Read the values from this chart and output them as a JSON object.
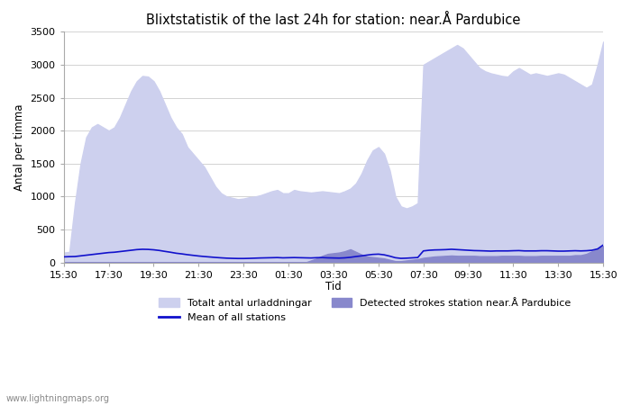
{
  "title": "Blixtstatistik of the last 24h for station: near.Å Pardubice",
  "xlabel": "Tid",
  "ylabel": "Antal per timma",
  "xlim_labels": [
    "15:30",
    "17:30",
    "19:30",
    "21:30",
    "23:30",
    "01:30",
    "03:30",
    "05:30",
    "07:30",
    "09:30",
    "11:30",
    "13:30",
    "15:30"
  ],
  "ylim": [
    0,
    3500
  ],
  "yticks": [
    0,
    500,
    1000,
    1500,
    2000,
    2500,
    3000,
    3500
  ],
  "watermark": "www.lightningmaps.org",
  "legend_entries": [
    {
      "label": "Totalt antal urladdningar",
      "color": "#cdd0ee",
      "type": "fill"
    },
    {
      "label": "Mean of all stations",
      "color": "#1111cc",
      "type": "line"
    },
    {
      "label": "Detected strokes station near.Å Pardubice",
      "color": "#8888cc",
      "type": "fill"
    }
  ],
  "total_y": [
    150,
    160,
    900,
    1500,
    1900,
    2050,
    2100,
    2050,
    2000,
    2050,
    2200,
    2400,
    2600,
    2750,
    2830,
    2820,
    2750,
    2600,
    2400,
    2200,
    2050,
    1950,
    1750,
    1650,
    1550,
    1450,
    1300,
    1150,
    1050,
    1000,
    980,
    960,
    970,
    990,
    1000,
    1020,
    1050,
    1080,
    1100,
    1050,
    1050,
    1100,
    1080,
    1070,
    1060,
    1070,
    1080,
    1070,
    1060,
    1050,
    1080,
    1120,
    1200,
    1350,
    1550,
    1700,
    1750,
    1650,
    1400,
    1000,
    850,
    820,
    850,
    900,
    3000,
    3050,
    3100,
    3150,
    3200,
    3250,
    3300,
    3250,
    3150,
    3050,
    2950,
    2900,
    2870,
    2850,
    2830,
    2820,
    2900,
    2950,
    2900,
    2850,
    2870,
    2850,
    2830,
    2850,
    2870,
    2850,
    2800,
    2750,
    2700,
    2650,
    2700,
    3000,
    3350
  ],
  "detected_y": [
    0,
    0,
    0,
    0,
    0,
    0,
    0,
    0,
    0,
    0,
    0,
    0,
    0,
    0,
    0,
    0,
    0,
    0,
    0,
    0,
    0,
    0,
    0,
    0,
    0,
    0,
    0,
    0,
    0,
    0,
    0,
    0,
    0,
    0,
    0,
    0,
    0,
    0,
    0,
    0,
    0,
    0,
    0,
    0,
    30,
    60,
    100,
    130,
    140,
    150,
    170,
    200,
    160,
    120,
    90,
    80,
    70,
    60,
    40,
    20,
    20,
    30,
    40,
    50,
    70,
    80,
    90,
    95,
    100,
    105,
    100,
    100,
    100,
    100,
    95,
    95,
    95,
    95,
    100,
    100,
    100,
    100,
    95,
    95,
    95,
    100,
    100,
    100,
    100,
    100,
    100,
    110,
    110,
    130,
    170,
    200,
    250
  ],
  "mean_y": [
    85,
    88,
    90,
    100,
    110,
    120,
    130,
    140,
    150,
    155,
    165,
    175,
    185,
    195,
    200,
    198,
    192,
    182,
    168,
    155,
    140,
    130,
    118,
    108,
    98,
    90,
    83,
    76,
    70,
    65,
    62,
    60,
    60,
    62,
    65,
    68,
    70,
    72,
    74,
    70,
    72,
    74,
    72,
    70,
    68,
    72,
    74,
    70,
    68,
    66,
    70,
    78,
    90,
    100,
    112,
    122,
    126,
    116,
    96,
    72,
    62,
    65,
    70,
    75,
    175,
    185,
    190,
    192,
    195,
    200,
    195,
    190,
    185,
    180,
    178,
    175,
    172,
    175,
    175,
    175,
    178,
    180,
    175,
    175,
    175,
    178,
    178,
    175,
    172,
    172,
    175,
    178,
    175,
    178,
    185,
    205,
    265
  ]
}
